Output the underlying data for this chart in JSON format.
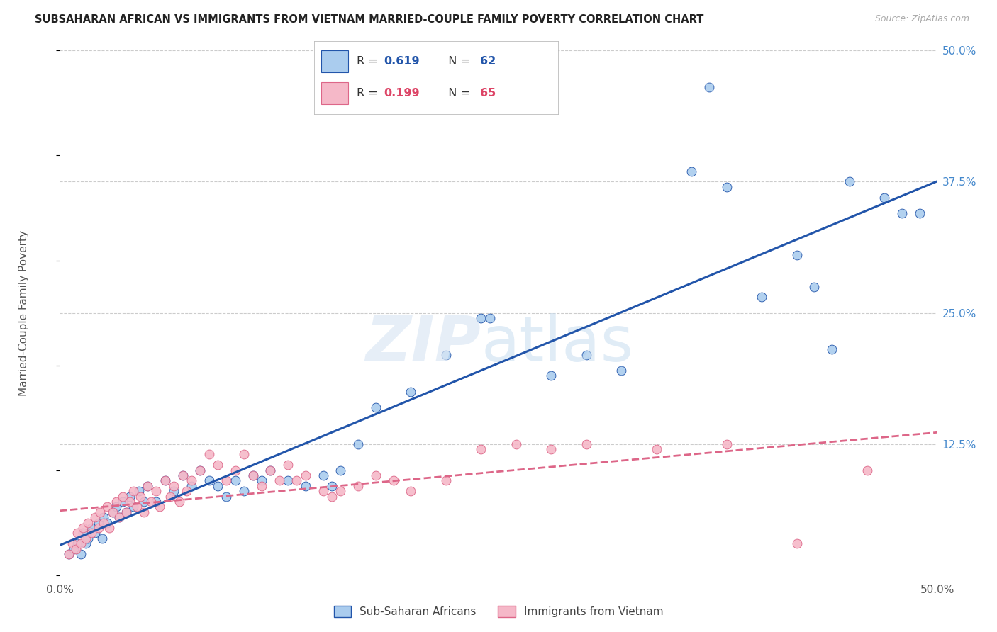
{
  "title": "SUBSAHARAN AFRICAN VS IMMIGRANTS FROM VIETNAM MARRIED-COUPLE FAMILY POVERTY CORRELATION CHART",
  "source": "Source: ZipAtlas.com",
  "ylabel": "Married-Couple Family Poverty",
  "legend_label1": "Sub-Saharan Africans",
  "legend_label2": "Immigrants from Vietnam",
  "r1": 0.619,
  "n1": 62,
  "r2": 0.199,
  "n2": 65,
  "xlim": [
    0.0,
    0.5
  ],
  "ylim": [
    0.0,
    0.5
  ],
  "yticks": [
    0.0,
    0.125,
    0.25,
    0.375,
    0.5
  ],
  "color_blue": "#aaccee",
  "color_pink": "#f5b8c8",
  "line_blue": "#2255aa",
  "line_pink": "#dd6688",
  "blue_points": [
    [
      0.005,
      0.02
    ],
    [
      0.008,
      0.025
    ],
    [
      0.01,
      0.03
    ],
    [
      0.012,
      0.02
    ],
    [
      0.013,
      0.04
    ],
    [
      0.015,
      0.03
    ],
    [
      0.016,
      0.035
    ],
    [
      0.018,
      0.045
    ],
    [
      0.02,
      0.04
    ],
    [
      0.022,
      0.05
    ],
    [
      0.024,
      0.035
    ],
    [
      0.025,
      0.055
    ],
    [
      0.027,
      0.05
    ],
    [
      0.03,
      0.06
    ],
    [
      0.032,
      0.065
    ],
    [
      0.034,
      0.055
    ],
    [
      0.036,
      0.07
    ],
    [
      0.038,
      0.06
    ],
    [
      0.04,
      0.075
    ],
    [
      0.042,
      0.065
    ],
    [
      0.045,
      0.08
    ],
    [
      0.048,
      0.07
    ],
    [
      0.05,
      0.085
    ],
    [
      0.055,
      0.07
    ],
    [
      0.06,
      0.09
    ],
    [
      0.065,
      0.08
    ],
    [
      0.07,
      0.095
    ],
    [
      0.075,
      0.085
    ],
    [
      0.08,
      0.1
    ],
    [
      0.085,
      0.09
    ],
    [
      0.09,
      0.085
    ],
    [
      0.095,
      0.075
    ],
    [
      0.1,
      0.09
    ],
    [
      0.105,
      0.08
    ],
    [
      0.11,
      0.095
    ],
    [
      0.115,
      0.09
    ],
    [
      0.12,
      0.1
    ],
    [
      0.13,
      0.09
    ],
    [
      0.14,
      0.085
    ],
    [
      0.15,
      0.095
    ],
    [
      0.155,
      0.085
    ],
    [
      0.16,
      0.1
    ],
    [
      0.17,
      0.125
    ],
    [
      0.18,
      0.16
    ],
    [
      0.2,
      0.175
    ],
    [
      0.22,
      0.21
    ],
    [
      0.24,
      0.245
    ],
    [
      0.245,
      0.245
    ],
    [
      0.28,
      0.19
    ],
    [
      0.3,
      0.21
    ],
    [
      0.32,
      0.195
    ],
    [
      0.36,
      0.385
    ],
    [
      0.37,
      0.465
    ],
    [
      0.38,
      0.37
    ],
    [
      0.4,
      0.265
    ],
    [
      0.42,
      0.305
    ],
    [
      0.43,
      0.275
    ],
    [
      0.44,
      0.215
    ],
    [
      0.45,
      0.375
    ],
    [
      0.47,
      0.36
    ],
    [
      0.48,
      0.345
    ],
    [
      0.49,
      0.345
    ]
  ],
  "pink_points": [
    [
      0.005,
      0.02
    ],
    [
      0.007,
      0.03
    ],
    [
      0.009,
      0.025
    ],
    [
      0.01,
      0.04
    ],
    [
      0.012,
      0.03
    ],
    [
      0.013,
      0.045
    ],
    [
      0.015,
      0.035
    ],
    [
      0.016,
      0.05
    ],
    [
      0.018,
      0.04
    ],
    [
      0.02,
      0.055
    ],
    [
      0.022,
      0.045
    ],
    [
      0.023,
      0.06
    ],
    [
      0.025,
      0.05
    ],
    [
      0.027,
      0.065
    ],
    [
      0.028,
      0.045
    ],
    [
      0.03,
      0.06
    ],
    [
      0.032,
      0.07
    ],
    [
      0.034,
      0.055
    ],
    [
      0.036,
      0.075
    ],
    [
      0.038,
      0.06
    ],
    [
      0.04,
      0.07
    ],
    [
      0.042,
      0.08
    ],
    [
      0.044,
      0.065
    ],
    [
      0.046,
      0.075
    ],
    [
      0.048,
      0.06
    ],
    [
      0.05,
      0.085
    ],
    [
      0.052,
      0.07
    ],
    [
      0.055,
      0.08
    ],
    [
      0.057,
      0.065
    ],
    [
      0.06,
      0.09
    ],
    [
      0.063,
      0.075
    ],
    [
      0.065,
      0.085
    ],
    [
      0.068,
      0.07
    ],
    [
      0.07,
      0.095
    ],
    [
      0.072,
      0.08
    ],
    [
      0.075,
      0.09
    ],
    [
      0.08,
      0.1
    ],
    [
      0.085,
      0.115
    ],
    [
      0.09,
      0.105
    ],
    [
      0.095,
      0.09
    ],
    [
      0.1,
      0.1
    ],
    [
      0.105,
      0.115
    ],
    [
      0.11,
      0.095
    ],
    [
      0.115,
      0.085
    ],
    [
      0.12,
      0.1
    ],
    [
      0.125,
      0.09
    ],
    [
      0.13,
      0.105
    ],
    [
      0.135,
      0.09
    ],
    [
      0.14,
      0.095
    ],
    [
      0.15,
      0.08
    ],
    [
      0.155,
      0.075
    ],
    [
      0.16,
      0.08
    ],
    [
      0.17,
      0.085
    ],
    [
      0.18,
      0.095
    ],
    [
      0.19,
      0.09
    ],
    [
      0.2,
      0.08
    ],
    [
      0.22,
      0.09
    ],
    [
      0.24,
      0.12
    ],
    [
      0.26,
      0.125
    ],
    [
      0.28,
      0.12
    ],
    [
      0.3,
      0.125
    ],
    [
      0.34,
      0.12
    ],
    [
      0.38,
      0.125
    ],
    [
      0.42,
      0.03
    ],
    [
      0.46,
      0.1
    ]
  ]
}
